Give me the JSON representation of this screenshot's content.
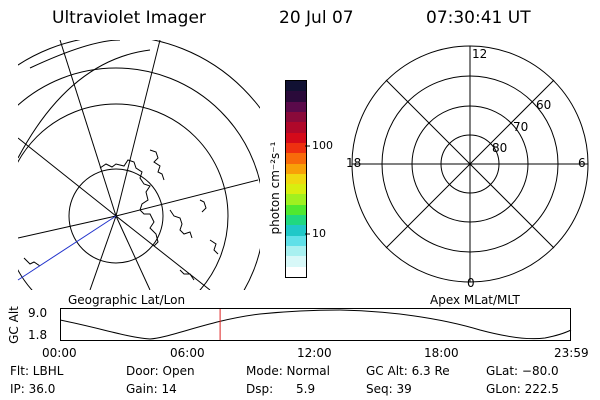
{
  "header": {
    "title": "Ultraviolet Imager",
    "date": "20 Jul 07",
    "time": "07:30:41 UT"
  },
  "colorbar": {
    "unit_label": "photon cm⁻²s⁻¹",
    "ticks": [
      "100",
      "10"
    ],
    "colors": [
      "#111133",
      "#2a0a3a",
      "#5a0a4a",
      "#8a0a3a",
      "#b0082a",
      "#d40a1a",
      "#ee3010",
      "#f86a0a",
      "#f8a008",
      "#f0d810",
      "#d8ee10",
      "#a0f020",
      "#50e830",
      "#20d880",
      "#20c8c8",
      "#60e0e8",
      "#a8f0f0",
      "#d8f8f8",
      "#ffffff"
    ]
  },
  "left_panel": {
    "label": "Geographic Lat/Lon"
  },
  "right_panel": {
    "label": "Apex MLat/MLT",
    "mlt_labels": {
      "top": "12",
      "left": "18",
      "right": "6",
      "bottom": "0"
    },
    "lat_labels": [
      "60",
      "70",
      "80"
    ]
  },
  "timeline": {
    "axis_label": "GC Alt",
    "y_ticks": [
      "9.0",
      "1.8"
    ],
    "x_ticks": [
      "00:00",
      "06:00",
      "12:00",
      "18:00",
      "23:59"
    ],
    "current_time_fraction": 0.3133,
    "marker_color": "#dd2222"
  },
  "info": {
    "flt": "Flt: LBHL",
    "ip": "IP: 36.0",
    "door": "Door: Open",
    "gain": "Gain: 14",
    "mode": "Mode: Normal",
    "dsp": "Dsp:      5.9",
    "gcalt": "GC Alt: 6.3 Re",
    "seq": "Seq: 39",
    "glat": "GLat: −80.0",
    "glon": "GLon: 222.5"
  }
}
